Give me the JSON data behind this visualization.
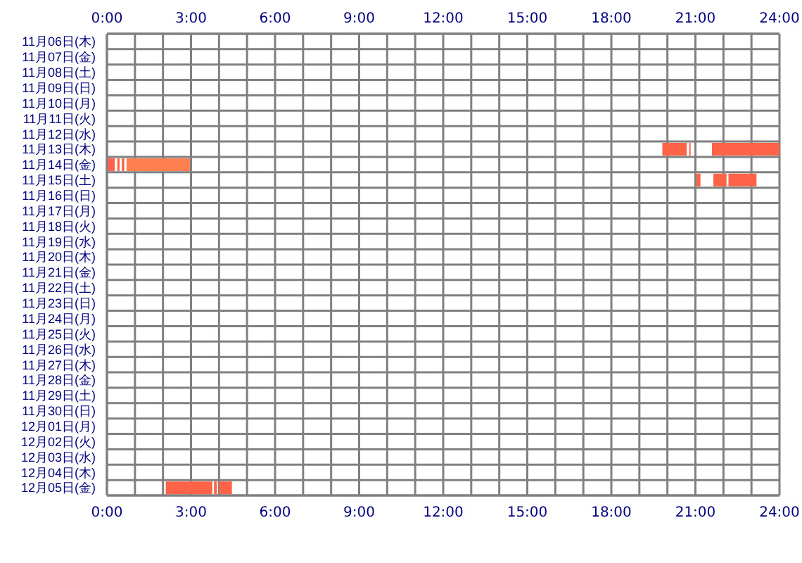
{
  "chart_data": {
    "type": "bar",
    "orientation": "horizontal",
    "grid": true,
    "categories": [
      "11月06日(木)",
      "11月07日(金)",
      "11月08日(土)",
      "11月09日(日)",
      "11月10日(月)",
      "11月11日(火)",
      "11月12日(水)",
      "11月13日(木)",
      "11月14日(金)",
      "11月15日(土)",
      "11月16日(日)",
      "11月17日(月)",
      "11月18日(火)",
      "11月19日(水)",
      "11月20日(木)",
      "11月21日(金)",
      "11月22日(土)",
      "11月23日(日)",
      "11月24日(月)",
      "11月25日(火)",
      "11月26日(水)",
      "11月27日(木)",
      "11月28日(金)",
      "11月29日(土)",
      "11月30日(日)",
      "12月01日(月)",
      "12月02日(火)",
      "12月03日(水)",
      "12月04日(木)",
      "12月05日(金)"
    ],
    "series": [
      {
        "color": "#ff6347",
        "base": [
          null,
          null,
          null,
          null,
          null,
          null,
          null,
          19.82,
          0,
          21.04,
          null,
          null,
          null,
          null,
          null,
          null,
          null,
          null,
          null,
          null,
          null,
          null,
          null,
          null,
          null,
          null,
          null,
          null,
          null,
          2.1
        ],
        "values": [
          null,
          null,
          null,
          null,
          null,
          null,
          null,
          0.87,
          0.28,
          0.14,
          null,
          null,
          null,
          null,
          null,
          null,
          null,
          null,
          null,
          null,
          null,
          null,
          null,
          null,
          null,
          null,
          null,
          null,
          null,
          1.66
        ]
      },
      {
        "color": "#ff6347",
        "base": [
          null,
          null,
          null,
          null,
          null,
          null,
          null,
          20.78,
          0.37,
          21.64,
          null,
          null,
          null,
          null,
          null,
          null,
          null,
          null,
          null,
          null,
          null,
          null,
          null,
          null,
          null,
          null,
          null,
          null,
          null,
          3.82
        ],
        "values": [
          null,
          null,
          null,
          null,
          null,
          null,
          null,
          0.05,
          0.08,
          0.47,
          null,
          null,
          null,
          null,
          null,
          null,
          null,
          null,
          null,
          null,
          null,
          null,
          null,
          null,
          null,
          null,
          null,
          null,
          null,
          0.1
        ]
      },
      {
        "color": "#ff6347",
        "base": [
          null,
          null,
          null,
          null,
          null,
          null,
          null,
          21.59,
          0.53,
          22.18,
          null,
          null,
          null,
          null,
          null,
          null,
          null,
          null,
          null,
          null,
          null,
          null,
          null,
          null,
          null,
          null,
          null,
          null,
          null,
          4.0
        ],
        "values": [
          null,
          null,
          null,
          null,
          null,
          null,
          null,
          2.41,
          0.09,
          1.0,
          null,
          null,
          null,
          null,
          null,
          null,
          null,
          null,
          null,
          null,
          null,
          null,
          null,
          null,
          null,
          null,
          null,
          null,
          null,
          0.46
        ]
      },
      {
        "color": "#ff7f50",
        "base": [
          null,
          null,
          null,
          null,
          null,
          null,
          null,
          null,
          0.7,
          null,
          null,
          null,
          null,
          null,
          null,
          null,
          null,
          null,
          null,
          null,
          null,
          null,
          null,
          null,
          null,
          null,
          null,
          null,
          null,
          null
        ],
        "values": [
          null,
          null,
          null,
          null,
          null,
          null,
          null,
          null,
          2.26,
          null,
          null,
          null,
          null,
          null,
          null,
          null,
          null,
          null,
          null,
          null,
          null,
          null,
          null,
          null,
          null,
          null,
          null,
          null,
          null,
          null
        ]
      }
    ],
    "xlim": [
      0,
      24
    ],
    "xticks": [
      {
        "value": 0,
        "label": "0:00"
      },
      {
        "value": 1,
        "label": null
      },
      {
        "value": 2,
        "label": null
      },
      {
        "value": 3,
        "label": "3:00"
      },
      {
        "value": 4,
        "label": null
      },
      {
        "value": 5,
        "label": null
      },
      {
        "value": 6,
        "label": "6:00"
      },
      {
        "value": 7,
        "label": null
      },
      {
        "value": 8,
        "label": null
      },
      {
        "value": 9,
        "label": "9:00"
      },
      {
        "value": 10,
        "label": null
      },
      {
        "value": 11,
        "label": null
      },
      {
        "value": 12,
        "label": "12:00"
      },
      {
        "value": 13,
        "label": null
      },
      {
        "value": 14,
        "label": null
      },
      {
        "value": 15,
        "label": "15:00"
      },
      {
        "value": 16,
        "label": null
      },
      {
        "value": 17,
        "label": null
      },
      {
        "value": 18,
        "label": "18:00"
      },
      {
        "value": 19,
        "label": null
      },
      {
        "value": 20,
        "label": null
      },
      {
        "value": 21,
        "label": "21:00"
      },
      {
        "value": 22,
        "label": null
      },
      {
        "value": 23,
        "label": null
      },
      {
        "value": 24,
        "label": "24:00"
      }
    ],
    "x2lim": [
      0,
      24
    ],
    "x2ticks": [
      {
        "value": 0,
        "label": "0:00"
      },
      {
        "value": 1,
        "label": null
      },
      {
        "value": 2,
        "label": null
      },
      {
        "value": 3,
        "label": "3:00"
      },
      {
        "value": 4,
        "label": null
      },
      {
        "value": 5,
        "label": null
      },
      {
        "value": 6,
        "label": "6:00"
      },
      {
        "value": 7,
        "label": null
      },
      {
        "value": 8,
        "label": null
      },
      {
        "value": 9,
        "label": "9:00"
      },
      {
        "value": 10,
        "label": null
      },
      {
        "value": 11,
        "label": null
      },
      {
        "value": 12,
        "label": "12:00"
      },
      {
        "value": 13,
        "label": null
      },
      {
        "value": 14,
        "label": null
      },
      {
        "value": 15,
        "label": "15:00"
      },
      {
        "value": 16,
        "label": null
      },
      {
        "value": 17,
        "label": null
      },
      {
        "value": 18,
        "label": "18:00"
      },
      {
        "value": 19,
        "label": null
      },
      {
        "value": 20,
        "label": null
      },
      {
        "value": 21,
        "label": "21:00"
      },
      {
        "value": 22,
        "label": null
      },
      {
        "value": 23,
        "label": null
      },
      {
        "value": 24,
        "label": "24:00"
      }
    ]
  }
}
